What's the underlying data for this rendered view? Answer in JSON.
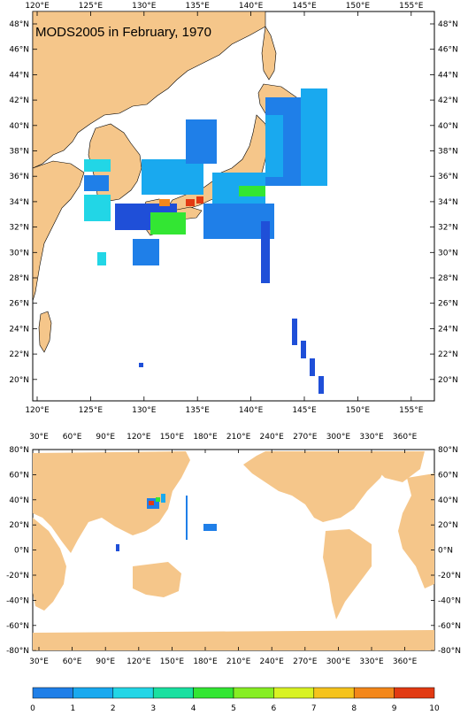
{
  "map_top": {
    "title": "MODS2005 in February, 1970",
    "lon_labels": [
      "120°E",
      "125°E",
      "130°E",
      "135°E",
      "140°E",
      "145°E",
      "150°E",
      "155°E"
    ],
    "lat_labels": [
      "48°N",
      "46°N",
      "44°N",
      "42°N",
      "40°N",
      "38°N",
      "36°N",
      "34°N",
      "32°N",
      "30°N",
      "28°N",
      "26°N",
      "24°N",
      "22°N",
      "20°N"
    ],
    "land_color": "#f5c68a",
    "ocean_color": "#ffffff"
  },
  "map_bottom": {
    "lon_labels": [
      "30°E",
      "60°E",
      "90°E",
      "120°E",
      "150°E",
      "180°E",
      "210°E",
      "240°E",
      "270°E",
      "300°E",
      "330°E",
      "360°E"
    ],
    "lat_labels": [
      "80°N",
      "60°N",
      "40°N",
      "20°N",
      "0°N",
      "-20°N",
      "-40°N",
      "-60°N",
      "-80°N"
    ],
    "land_color": "#f5c68a"
  },
  "colorbar": {
    "labels": [
      "0",
      "1",
      "2",
      "3",
      "4",
      "5",
      "6",
      "7",
      "8",
      "9",
      "10"
    ],
    "colors": [
      "#1f4fd8",
      "#1f7fe8",
      "#19a9ef",
      "#22d6e6",
      "#19e0a0",
      "#33e633",
      "#86ee23",
      "#d8f222",
      "#f5c31c",
      "#f3871a",
      "#e23a12"
    ]
  }
}
